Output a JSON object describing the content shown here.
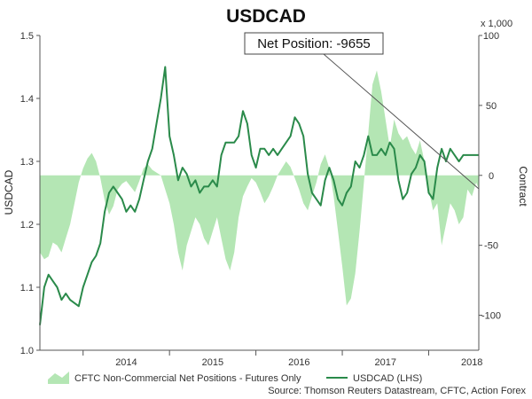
{
  "chart_data": {
    "type": "line",
    "title": "USDCAD",
    "ylabel_left": "USDCAD",
    "ylabel_right": "Contract",
    "right_multiplier": "x 1,000",
    "ylim_left": [
      1.0,
      1.5
    ],
    "yticks_left": [
      "1.0",
      "1.1",
      "1.2",
      "1.3",
      "1.4",
      "1.5"
    ],
    "ylim_right": [
      -125,
      100
    ],
    "yticks_right": [
      "-100",
      "-50",
      "0",
      "50",
      "100"
    ],
    "xlim": [
      2013.5,
      2018.58
    ],
    "xticks": [
      "2014",
      "2015",
      "2016",
      "2017",
      "2018"
    ],
    "grid": false,
    "legend_position": "bottom",
    "annotation": "Net Position: -9655",
    "source": "Source: Thomson Reuters Datastream, CFTC, Action Forex",
    "colors": {
      "area": "#b4e6b4",
      "line": "#2a8a4a",
      "axis": "#555555",
      "callout_line": "#555555"
    },
    "series": [
      {
        "name": "CFTC Non-Commercial Net Positions - Futures Only",
        "kind": "area",
        "axis": "right",
        "x": [
          2013.5,
          2013.55,
          2013.6,
          2013.65,
          2013.7,
          2013.75,
          2013.8,
          2013.85,
          2013.9,
          2013.95,
          2014.0,
          2014.05,
          2014.1,
          2014.15,
          2014.2,
          2014.25,
          2014.3,
          2014.35,
          2014.4,
          2014.45,
          2014.5,
          2014.55,
          2014.6,
          2014.65,
          2014.7,
          2014.75,
          2014.8,
          2014.85,
          2014.9,
          2014.95,
          2015.0,
          2015.05,
          2015.1,
          2015.15,
          2015.2,
          2015.25,
          2015.3,
          2015.35,
          2015.4,
          2015.45,
          2015.5,
          2015.55,
          2015.6,
          2015.65,
          2015.7,
          2015.75,
          2015.8,
          2015.85,
          2015.9,
          2015.95,
          2016.0,
          2016.05,
          2016.1,
          2016.15,
          2016.2,
          2016.25,
          2016.3,
          2016.35,
          2016.4,
          2016.45,
          2016.5,
          2016.55,
          2016.6,
          2016.65,
          2016.7,
          2016.75,
          2016.8,
          2016.85,
          2016.9,
          2016.95,
          2017.0,
          2017.05,
          2017.1,
          2017.15,
          2017.2,
          2017.25,
          2017.3,
          2017.35,
          2017.4,
          2017.45,
          2017.5,
          2017.55,
          2017.6,
          2017.65,
          2017.7,
          2017.75,
          2017.8,
          2017.85,
          2017.9,
          2017.95,
          2018.0,
          2018.05,
          2018.1,
          2018.15,
          2018.2,
          2018.25,
          2018.3,
          2018.35,
          2018.4,
          2018.45,
          2018.5,
          2018.55,
          2018.58
        ],
        "values": [
          -55,
          -60,
          -58,
          -48,
          -50,
          -55,
          -45,
          -35,
          -20,
          -5,
          5,
          12,
          16,
          10,
          -2,
          -18,
          -28,
          -22,
          -10,
          -6,
          -4,
          -8,
          -12,
          -4,
          5,
          8,
          4,
          2,
          0,
          -10,
          -20,
          -35,
          -55,
          -68,
          -50,
          -40,
          -30,
          -35,
          -45,
          -50,
          -40,
          -30,
          -45,
          -60,
          -68,
          -55,
          -30,
          -15,
          -8,
          -2,
          -5,
          -12,
          -20,
          -15,
          -8,
          0,
          5,
          10,
          6,
          -2,
          -10,
          -20,
          -25,
          -15,
          -5,
          8,
          15,
          5,
          -15,
          -40,
          -65,
          -93,
          -88,
          -70,
          -40,
          -5,
          30,
          65,
          75,
          60,
          40,
          20,
          40,
          30,
          25,
          28,
          20,
          15,
          25,
          10,
          -10,
          -25,
          -20,
          -50,
          -35,
          -20,
          -25,
          -35,
          -30,
          -10,
          -15,
          -5,
          -9.655
        ]
      },
      {
        "name": "USDCAD (LHS)",
        "kind": "line",
        "axis": "left",
        "x": [
          2013.5,
          2013.55,
          2013.6,
          2013.65,
          2013.7,
          2013.75,
          2013.8,
          2013.85,
          2013.9,
          2013.95,
          2014.0,
          2014.05,
          2014.1,
          2014.15,
          2014.2,
          2014.25,
          2014.3,
          2014.35,
          2014.4,
          2014.45,
          2014.5,
          2014.55,
          2014.6,
          2014.65,
          2014.7,
          2014.75,
          2014.8,
          2014.85,
          2014.9,
          2014.95,
          2015.0,
          2015.05,
          2015.1,
          2015.15,
          2015.2,
          2015.25,
          2015.3,
          2015.35,
          2015.4,
          2015.45,
          2015.5,
          2015.55,
          2015.6,
          2015.65,
          2015.7,
          2015.75,
          2015.8,
          2015.85,
          2015.9,
          2015.95,
          2016.0,
          2016.05,
          2016.1,
          2016.15,
          2016.2,
          2016.25,
          2016.3,
          2016.35,
          2016.4,
          2016.45,
          2016.5,
          2016.55,
          2016.6,
          2016.65,
          2016.7,
          2016.75,
          2016.8,
          2016.85,
          2016.9,
          2016.95,
          2017.0,
          2017.05,
          2017.1,
          2017.15,
          2017.2,
          2017.25,
          2017.3,
          2017.35,
          2017.4,
          2017.45,
          2017.5,
          2017.55,
          2017.6,
          2017.65,
          2017.7,
          2017.75,
          2017.8,
          2017.85,
          2017.9,
          2017.95,
          2018.0,
          2018.05,
          2018.1,
          2018.15,
          2018.2,
          2018.25,
          2018.3,
          2018.35,
          2018.4,
          2018.45,
          2018.5,
          2018.55,
          2018.58
        ],
        "values": [
          1.04,
          1.1,
          1.12,
          1.11,
          1.1,
          1.08,
          1.09,
          1.08,
          1.075,
          1.07,
          1.1,
          1.12,
          1.14,
          1.15,
          1.17,
          1.22,
          1.25,
          1.26,
          1.25,
          1.24,
          1.22,
          1.23,
          1.22,
          1.24,
          1.27,
          1.3,
          1.32,
          1.36,
          1.4,
          1.45,
          1.34,
          1.31,
          1.27,
          1.29,
          1.28,
          1.26,
          1.27,
          1.25,
          1.26,
          1.26,
          1.27,
          1.26,
          1.31,
          1.33,
          1.33,
          1.33,
          1.34,
          1.38,
          1.36,
          1.31,
          1.29,
          1.32,
          1.32,
          1.31,
          1.32,
          1.31,
          1.32,
          1.33,
          1.34,
          1.37,
          1.36,
          1.34,
          1.28,
          1.25,
          1.24,
          1.23,
          1.27,
          1.29,
          1.27,
          1.24,
          1.23,
          1.25,
          1.26,
          1.3,
          1.29,
          1.31,
          1.34,
          1.31,
          1.31,
          1.32,
          1.31,
          1.33,
          1.32,
          1.27,
          1.24,
          1.25,
          1.28,
          1.29,
          1.31,
          1.3,
          1.25,
          1.24,
          1.29,
          1.32,
          1.3,
          1.32,
          1.31,
          1.3,
          1.31,
          1.31,
          1.31,
          1.31,
          1.31
        ]
      }
    ]
  }
}
